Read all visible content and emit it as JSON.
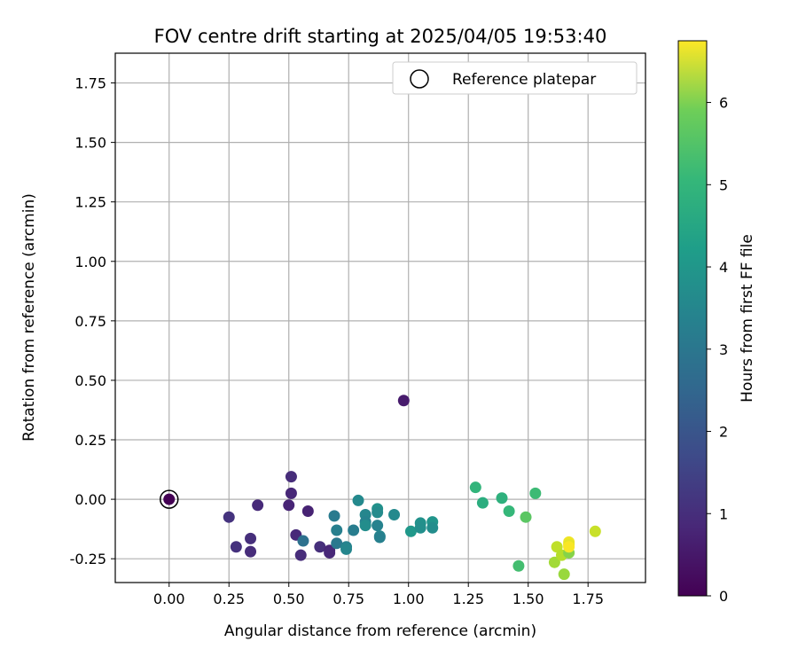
{
  "chart_data": {
    "type": "scatter",
    "title": "FOV centre drift starting at 2025/04/05 19:53:40",
    "xlabel": "Angular distance from reference (arcmin)",
    "ylabel": "Rotation from reference (arcmin)",
    "xlim": [
      -0.225,
      1.99
    ],
    "ylim": [
      -0.35,
      1.875
    ],
    "xticks": [
      "0.00",
      "0.25",
      "0.50",
      "0.75",
      "1.00",
      "1.25",
      "1.50",
      "1.75"
    ],
    "yticks": [
      "-0.25",
      "0.00",
      "0.25",
      "0.50",
      "0.75",
      "1.00",
      "1.25",
      "1.50",
      "1.75"
    ],
    "grid": true,
    "legend": {
      "location": "upper right",
      "entries": [
        "Reference platepar"
      ]
    },
    "reference_point": {
      "x": 0.0,
      "y": 0.0,
      "label": "Reference platepar",
      "marker": "open circle"
    },
    "colorbar": {
      "label": "Hours from first FF file",
      "colormap": "viridis",
      "range": [
        0,
        6.75
      ],
      "ticks": [
        "0",
        "1",
        "2",
        "3",
        "4",
        "5",
        "6"
      ]
    },
    "points": [
      {
        "x": 0.0,
        "y": 0.0,
        "hours": 0.0
      },
      {
        "x": 0.98,
        "y": 0.415,
        "hours": 0.5
      },
      {
        "x": 0.25,
        "y": -0.075,
        "hours": 1.0
      },
      {
        "x": 0.28,
        "y": -0.2,
        "hours": 0.95
      },
      {
        "x": 0.34,
        "y": -0.165,
        "hours": 0.9
      },
      {
        "x": 0.34,
        "y": -0.22,
        "hours": 0.85
      },
      {
        "x": 0.37,
        "y": -0.025,
        "hours": 0.8
      },
      {
        "x": 0.51,
        "y": 0.095,
        "hours": 0.85
      },
      {
        "x": 0.51,
        "y": 0.025,
        "hours": 0.75
      },
      {
        "x": 0.5,
        "y": -0.025,
        "hours": 0.7
      },
      {
        "x": 0.53,
        "y": -0.15,
        "hours": 0.8
      },
      {
        "x": 0.55,
        "y": -0.235,
        "hours": 0.85
      },
      {
        "x": 0.58,
        "y": -0.05,
        "hours": 0.65
      },
      {
        "x": 0.63,
        "y": -0.2,
        "hours": 0.9
      },
      {
        "x": 0.67,
        "y": -0.215,
        "hours": 0.7
      },
      {
        "x": 0.67,
        "y": -0.225,
        "hours": 0.75
      },
      {
        "x": 0.56,
        "y": -0.175,
        "hours": 2.5
      },
      {
        "x": 0.69,
        "y": -0.07,
        "hours": 2.8
      },
      {
        "x": 0.7,
        "y": -0.13,
        "hours": 2.9
      },
      {
        "x": 0.7,
        "y": -0.185,
        "hours": 2.7
      },
      {
        "x": 0.74,
        "y": -0.2,
        "hours": 3.0
      },
      {
        "x": 0.74,
        "y": -0.21,
        "hours": 3.1
      },
      {
        "x": 0.77,
        "y": -0.13,
        "hours": 2.85
      },
      {
        "x": 0.79,
        "y": -0.005,
        "hours": 3.2
      },
      {
        "x": 0.82,
        "y": -0.065,
        "hours": 3.1
      },
      {
        "x": 0.82,
        "y": -0.095,
        "hours": 3.0
      },
      {
        "x": 0.82,
        "y": -0.11,
        "hours": 3.3
      },
      {
        "x": 0.87,
        "y": -0.04,
        "hours": 3.4
      },
      {
        "x": 0.87,
        "y": -0.055,
        "hours": 3.25
      },
      {
        "x": 0.87,
        "y": -0.11,
        "hours": 3.0
      },
      {
        "x": 0.88,
        "y": -0.155,
        "hours": 3.1
      },
      {
        "x": 0.88,
        "y": -0.16,
        "hours": 2.95
      },
      {
        "x": 0.94,
        "y": -0.065,
        "hours": 3.2
      },
      {
        "x": 1.01,
        "y": -0.135,
        "hours": 3.6
      },
      {
        "x": 1.05,
        "y": -0.1,
        "hours": 3.4
      },
      {
        "x": 1.05,
        "y": -0.12,
        "hours": 3.35
      },
      {
        "x": 1.1,
        "y": -0.095,
        "hours": 3.5
      },
      {
        "x": 1.1,
        "y": -0.12,
        "hours": 3.3
      },
      {
        "x": 1.28,
        "y": 0.05,
        "hours": 4.4
      },
      {
        "x": 1.31,
        "y": -0.015,
        "hours": 4.2
      },
      {
        "x": 1.39,
        "y": 0.005,
        "hours": 4.3
      },
      {
        "x": 1.42,
        "y": -0.05,
        "hours": 4.5
      },
      {
        "x": 1.46,
        "y": -0.28,
        "hours": 4.7
      },
      {
        "x": 1.49,
        "y": -0.075,
        "hours": 5.0
      },
      {
        "x": 1.53,
        "y": 0.025,
        "hours": 4.6
      },
      {
        "x": 1.61,
        "y": -0.265,
        "hours": 5.8
      },
      {
        "x": 1.62,
        "y": -0.2,
        "hours": 6.1
      },
      {
        "x": 1.64,
        "y": -0.235,
        "hours": 6.0
      },
      {
        "x": 1.65,
        "y": -0.315,
        "hours": 5.7
      },
      {
        "x": 1.67,
        "y": -0.225,
        "hours": 5.5
      },
      {
        "x": 1.67,
        "y": -0.18,
        "hours": 6.6
      },
      {
        "x": 1.67,
        "y": -0.19,
        "hours": 6.5
      },
      {
        "x": 1.67,
        "y": -0.2,
        "hours": 6.7
      },
      {
        "x": 1.78,
        "y": -0.135,
        "hours": 6.2
      }
    ]
  }
}
